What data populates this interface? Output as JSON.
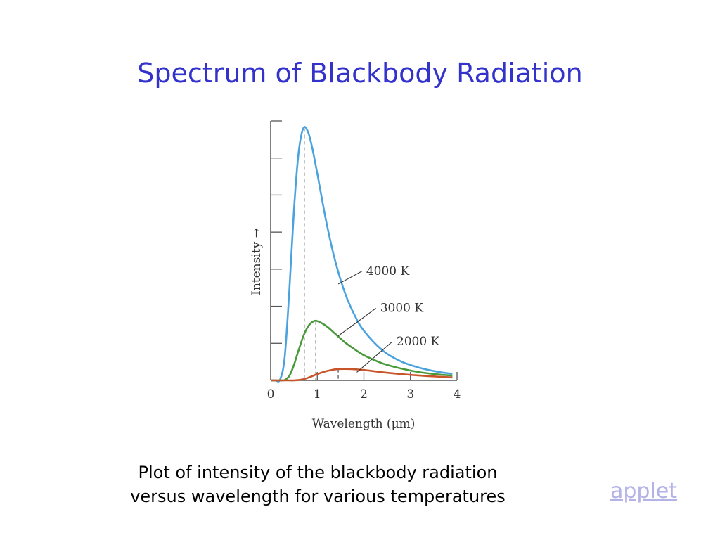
{
  "slide": {
    "title": "Spectrum of Blackbody Radiation",
    "caption_lines": [
      "Plot of intensity of the blackbody radiation",
      "versus wavelength for various temperatures"
    ],
    "link_label": "applet"
  },
  "colors": {
    "title": "#3333cc",
    "link": "#b3b3e6",
    "series_4000": "#4aa3df",
    "series_3000": "#4a9a3c",
    "series_2000": "#c8552a",
    "axis": "#555555"
  },
  "chart_data": {
    "type": "line",
    "title": "",
    "xlabel": "Wavelength (μm)",
    "ylabel": "Intensity →",
    "xlim": [
      0,
      4
    ],
    "ylim": [
      0,
      7
    ],
    "x_ticks": [
      "0",
      "1",
      "2",
      "3",
      "4"
    ],
    "y_tick_count": 7,
    "y_tick_labels_shown": false,
    "grid": false,
    "x": [
      0.1,
      0.2,
      0.3,
      0.4,
      0.5,
      0.6,
      0.7,
      0.8,
      0.9,
      1.0,
      1.2,
      1.4,
      1.6,
      1.8,
      2.0,
      2.4,
      2.8,
      3.2,
      3.6,
      3.9
    ],
    "series": [
      {
        "name": "4000 K",
        "values": [
          0.0,
          0.02,
          0.62,
          2.42,
          4.6,
          6.16,
          6.8,
          6.71,
          6.23,
          5.58,
          4.24,
          3.15,
          2.34,
          1.76,
          1.34,
          0.81,
          0.51,
          0.34,
          0.23,
          0.18
        ],
        "peak_x": 0.72
      },
      {
        "name": "3000 K",
        "values": [
          0.0,
          0.0,
          0.01,
          0.12,
          0.42,
          0.82,
          1.19,
          1.45,
          1.58,
          1.6,
          1.46,
          1.24,
          1.02,
          0.84,
          0.68,
          0.46,
          0.32,
          0.22,
          0.16,
          0.13
        ],
        "peak_x": 0.97
      },
      {
        "name": "2000 K",
        "values": [
          0.0,
          0.0,
          0.0,
          0.0,
          0.0,
          0.01,
          0.03,
          0.07,
          0.12,
          0.17,
          0.25,
          0.3,
          0.31,
          0.3,
          0.28,
          0.22,
          0.17,
          0.13,
          0.1,
          0.08
        ],
        "peak_x": 1.45
      }
    ]
  }
}
